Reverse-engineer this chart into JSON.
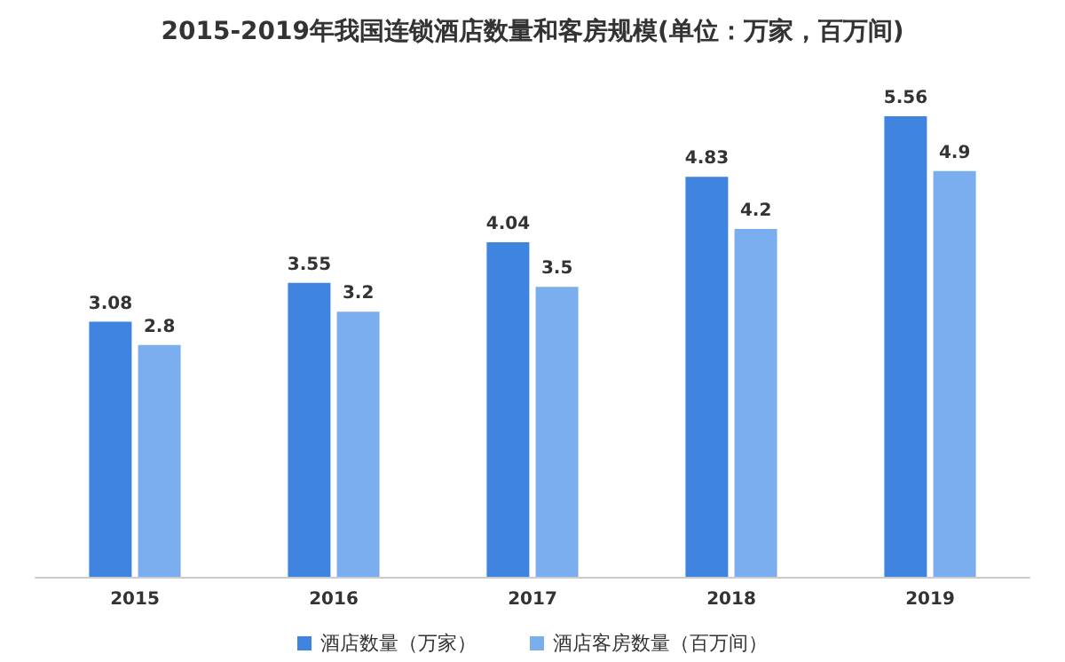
{
  "chart_data": {
    "type": "bar",
    "title": "2015-2019年我国连锁酒店数量和客房规模(单位：万家，百万间)",
    "categories": [
      "2015",
      "2016",
      "2017",
      "2018",
      "2019"
    ],
    "series": [
      {
        "name": "酒店数量（万家）",
        "color": "#3f85e0",
        "values": [
          3.08,
          3.55,
          4.04,
          4.83,
          5.56
        ]
      },
      {
        "name": "酒店客房数量（百万间）",
        "color": "#7aaeef",
        "values": [
          2.8,
          3.2,
          3.5,
          4.2,
          4.9
        ]
      }
    ],
    "data_labels": true,
    "legend": "bottom",
    "grid": false
  }
}
